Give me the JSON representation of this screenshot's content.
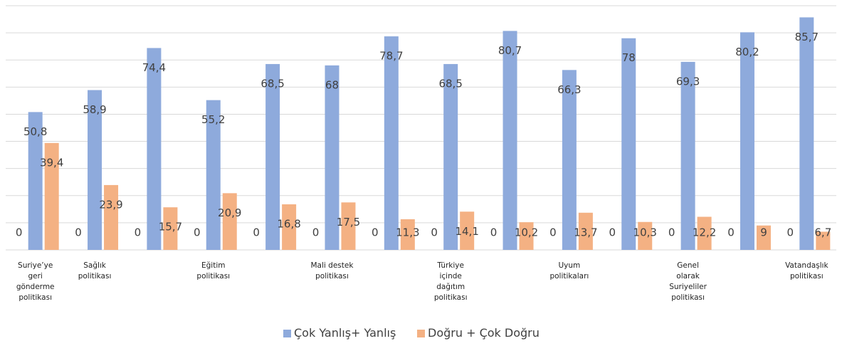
{
  "chart_data": {
    "type": "bar",
    "categories": [
      "Suriye’ye geri gönderme politikası",
      "Sağlık politikası",
      null,
      "Eğitim politikası",
      null,
      "Mali destek politikası",
      null,
      "Türkiye içinde dağıtım politikası",
      null,
      "Uyum politikaları",
      null,
      "Genel olarak Suriyeliler politikası",
      null,
      "Vatandaşlık politikası"
    ],
    "series": [
      {
        "values": [
          0,
          0,
          0,
          0,
          0,
          0,
          0,
          0,
          0,
          0,
          0,
          0,
          0,
          0
        ]
      },
      {
        "name": "Çok Yanlış+ Yanlış",
        "color": "#8eaadc",
        "values": [
          50.8,
          58.9,
          74.4,
          55.2,
          68.5,
          68,
          78.7,
          68.5,
          80.7,
          66.3,
          78,
          69.3,
          80.2,
          85.7
        ],
        "value_labels": [
          "50,8",
          "58,9",
          "74,4",
          "55,2",
          "68,5",
          "68",
          "78,7",
          "68,5",
          "80,7",
          "66,3",
          "78",
          "69,3",
          "80,2",
          "85,7"
        ]
      },
      {
        "name": "Doğru + Çok Doğru",
        "color": "#f4b183",
        "values": [
          39.4,
          23.9,
          15.7,
          20.9,
          16.8,
          17.5,
          11.3,
          14.1,
          10.2,
          13.7,
          10.3,
          12.2,
          9,
          6.7
        ],
        "value_labels": [
          "39,4",
          "23,9",
          "15,7",
          "20,9",
          "16,8",
          "17,5",
          "11,3",
          "14,1",
          "10,2",
          "13,7",
          "10,3",
          "12,2",
          "9",
          "6,7"
        ]
      }
    ],
    "ylim": [
      0,
      90
    ],
    "yticks": [
      0,
      10,
      20,
      30,
      40,
      50,
      60,
      70,
      80,
      90
    ],
    "grid": true
  }
}
